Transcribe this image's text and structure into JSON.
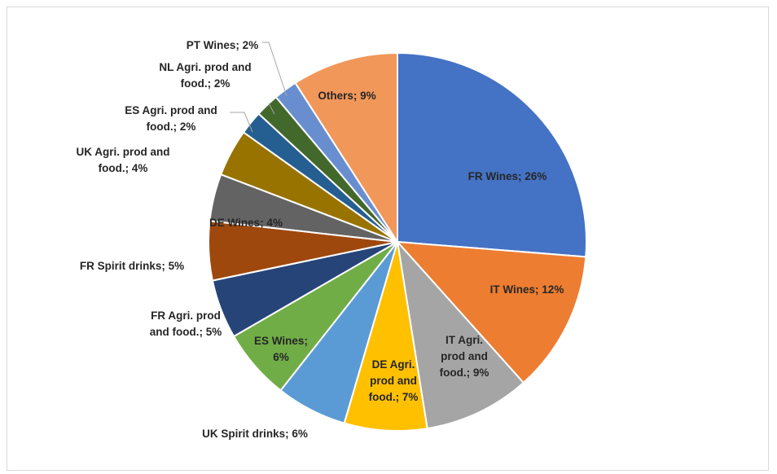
{
  "chart_data": {
    "type": "pie",
    "title": "",
    "start_angle_deg": 0,
    "direction": "clockwise",
    "legend": "none",
    "slices": [
      {
        "name": "FR Wines",
        "label": "FR Wines; 26%",
        "value": 26,
        "color": "#4472C4"
      },
      {
        "name": "IT Wines",
        "label": "IT Wines; 12%",
        "value": 12,
        "color": "#ED7D31"
      },
      {
        "name": "IT Agri. prod and food.",
        "label": "IT Agri. prod and food.; 9%",
        "value": 9,
        "color": "#A5A5A5"
      },
      {
        "name": "DE Agri. prod and food.",
        "label": "DE Agri. prod and food.; 7%",
        "value": 7,
        "color": "#FFC000"
      },
      {
        "name": "UK Spirit drinks",
        "label": "UK Spirit drinks; 6%",
        "value": 6,
        "color": "#5B9BD5"
      },
      {
        "name": "ES Wines",
        "label": "ES Wines; 6%",
        "value": 6,
        "color": "#70AD47"
      },
      {
        "name": "FR Agri. prod and food.",
        "label": "FR Agri. prod and food.; 5%",
        "value": 5,
        "color": "#264478"
      },
      {
        "name": "FR Spirit drinks",
        "label": "FR Spirit drinks; 5%",
        "value": 5,
        "color": "#9E480E"
      },
      {
        "name": "DE Wines",
        "label": "DE Wines; 4%",
        "value": 4,
        "color": "#636363"
      },
      {
        "name": "UK Agri. prod and food.",
        "label": "UK Agri. prod and food.; 4%",
        "value": 4,
        "color": "#997300"
      },
      {
        "name": "ES Agri. prod and food.",
        "label": "ES Agri. prod and food.; 2%",
        "value": 2,
        "color": "#255E91"
      },
      {
        "name": "NL Agri. prod and food.",
        "label": "NL Agri. prod and food.; 2%",
        "value": 2,
        "color": "#43682B"
      },
      {
        "name": "PT Wines",
        "label": "PT Wines; 2%",
        "value": 2,
        "color": "#698ED0"
      },
      {
        "name": "Others",
        "label": "Others; 9%",
        "value": 9,
        "color": "#F1975A"
      }
    ]
  }
}
